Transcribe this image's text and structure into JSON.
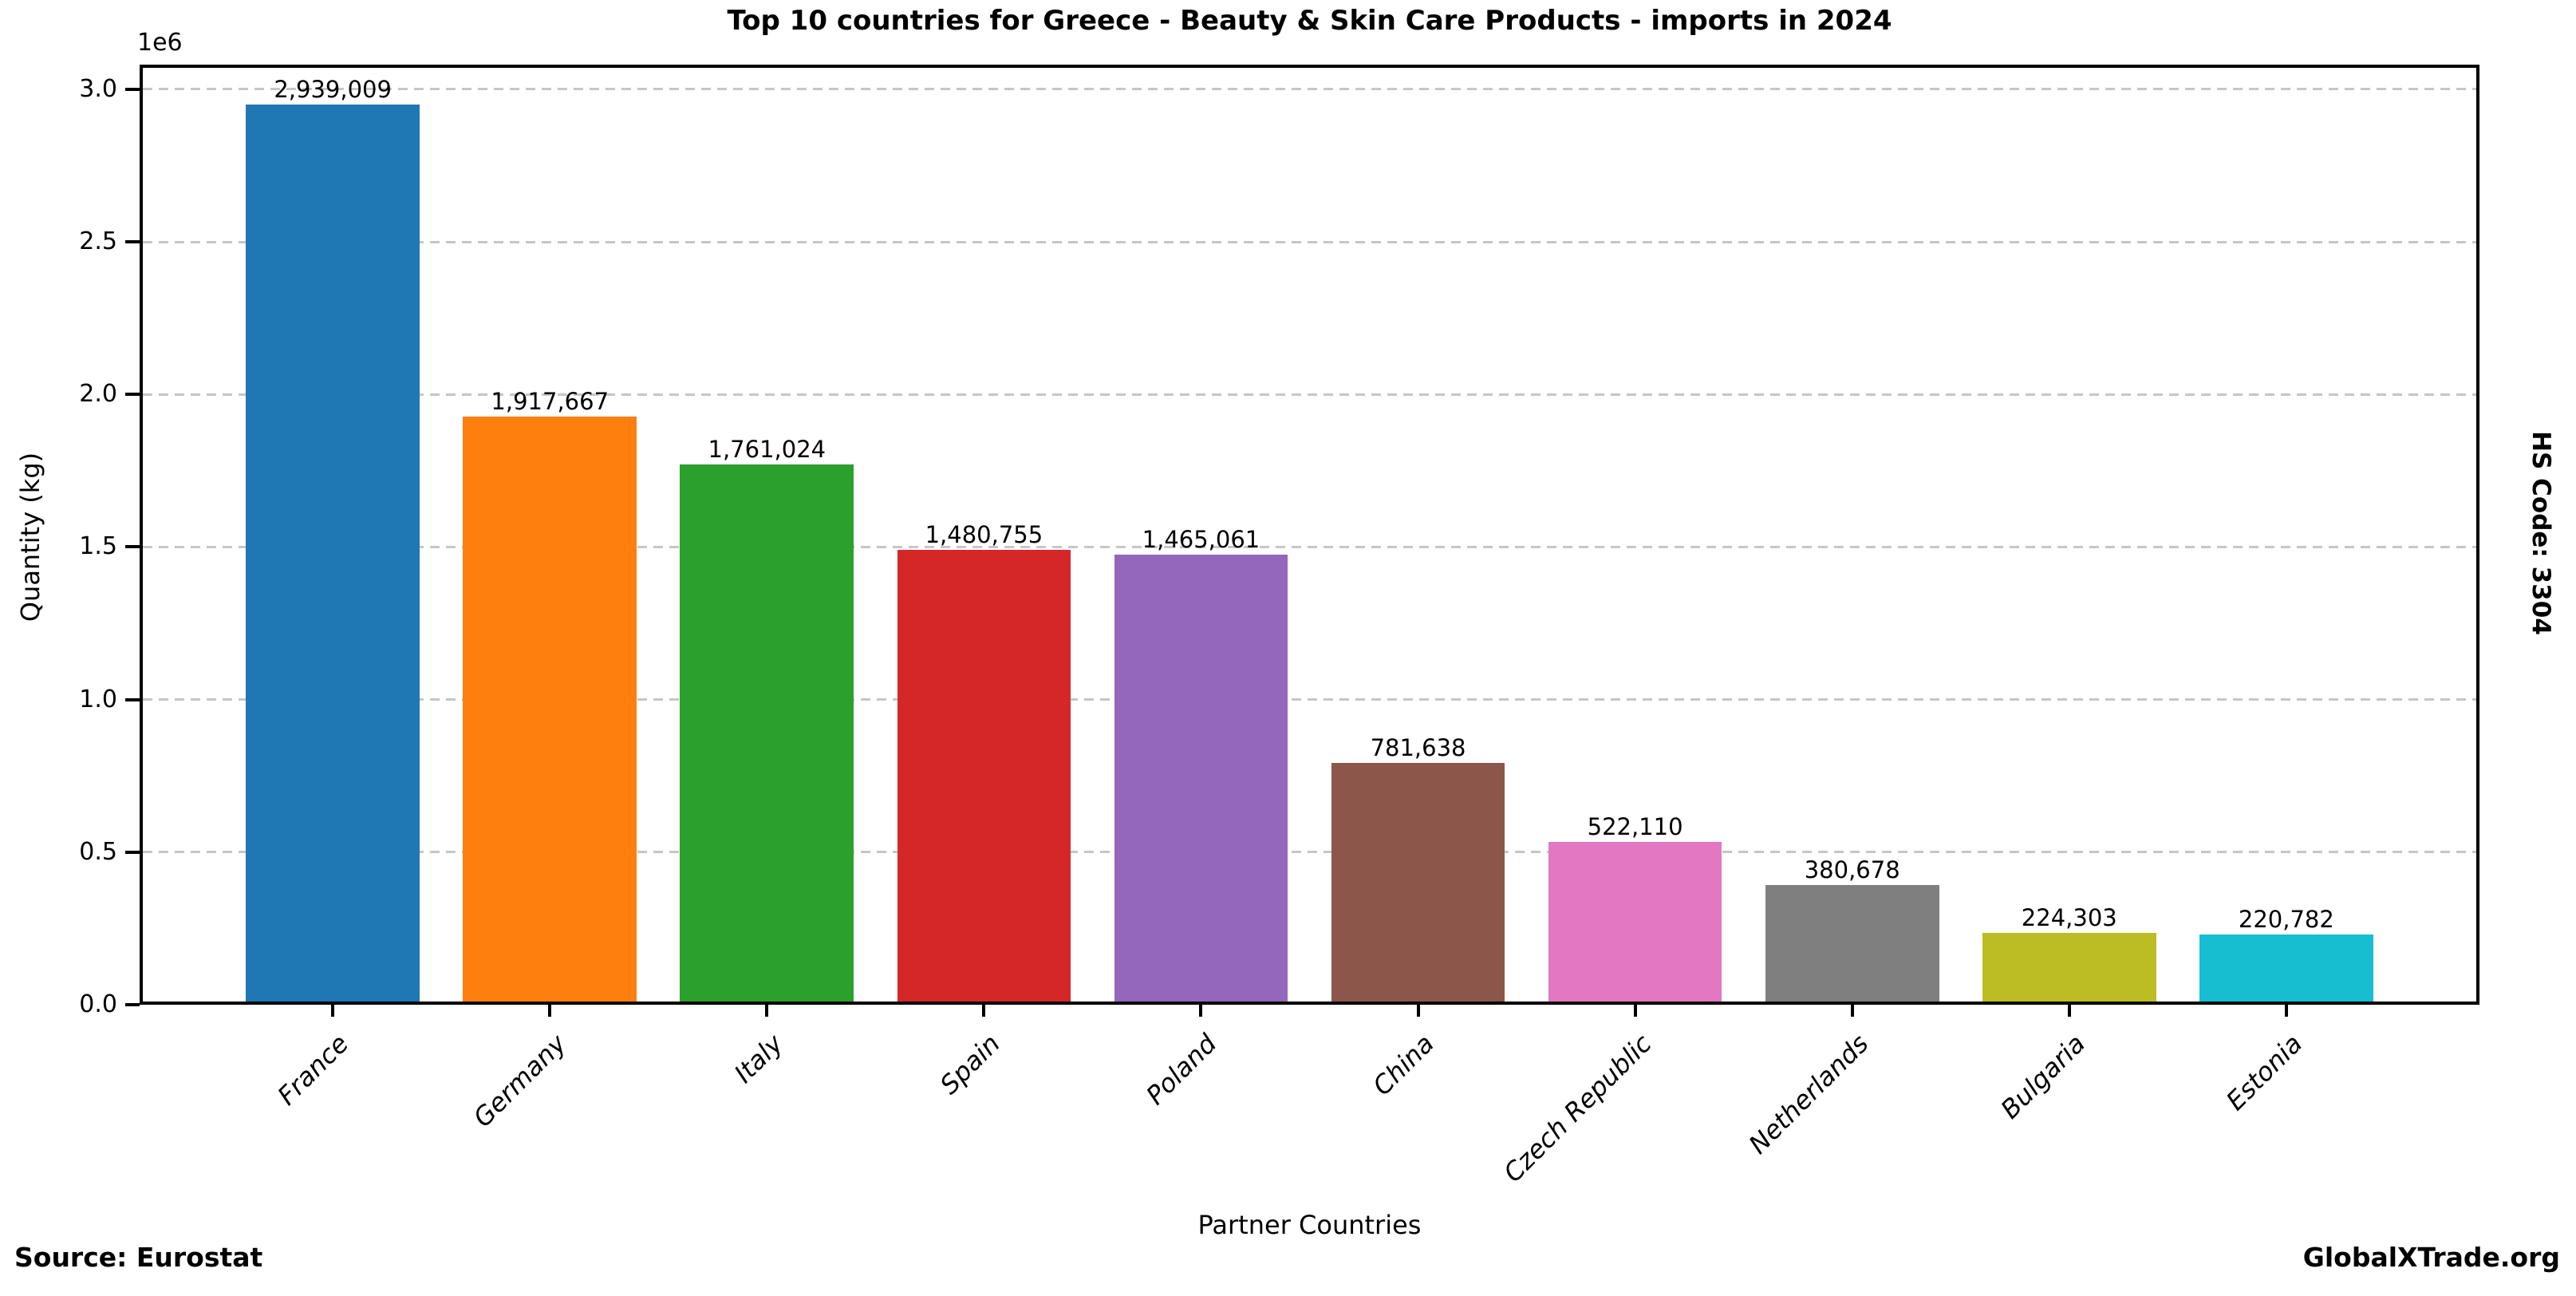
{
  "title": "Top 10 countries for Greece - Beauty & Skin Care Products - imports in 2024",
  "side_label": "HS Code: 3304",
  "footer": {
    "source": "Source: Eurostat",
    "brand": "GlobalXTrade.org"
  },
  "chart_data": {
    "type": "bar",
    "title": "Top 10 countries for Greece - Beauty & Skin Care Products - imports in 2024",
    "xlabel": "Partner Countries",
    "ylabel": "Quantity (kg)",
    "offset_text": "1e6",
    "categories": [
      "France",
      "Germany",
      "Italy",
      "Spain",
      "Poland",
      "China",
      "Czech Republic",
      "Netherlands",
      "Bulgaria",
      "Estonia"
    ],
    "values": [
      2939009,
      1917667,
      1761024,
      1480755,
      1465061,
      781638,
      522110,
      380678,
      224303,
      220782
    ],
    "bar_labels": [
      "2,939,009",
      "1,917,667",
      "1,761,024",
      "1,480,755",
      "1,465,061",
      "781,638",
      "522,110",
      "380,678",
      "224,303",
      "220,782"
    ],
    "bar_colors": [
      "#1f77b4",
      "#ff7f0e",
      "#2ca02c",
      "#d62728",
      "#9467bd",
      "#8c564b",
      "#e377c2",
      "#7f7f7f",
      "#bcbd22",
      "#17becf"
    ],
    "yticks": [
      0,
      500000,
      1000000,
      1500000,
      2000000,
      2500000,
      3000000
    ],
    "ytick_labels": [
      "0.0",
      "0.5",
      "1.0",
      "1.5",
      "2.0",
      "2.5",
      "3.0"
    ],
    "ylim": [
      0,
      3081000
    ],
    "grid": "horizontal-dashed",
    "legend": "none",
    "gridline_color": "#c6c6c6",
    "axis_color": "#000000"
  }
}
